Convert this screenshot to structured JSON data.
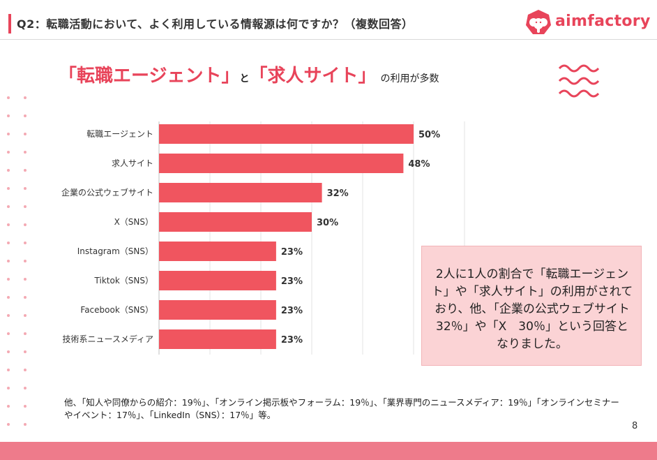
{
  "header": {
    "title": "Q2：転職活動において、よく利用している情報源は何ですか？（複数回答）",
    "logo_text": "aimfactory"
  },
  "headline": {
    "part1": "「転職エージェント」",
    "part2": "と",
    "part3": "「求人サイト」",
    "part4": "の利用が多数"
  },
  "colors": {
    "accent": "#e8445a",
    "bar": "#f0555f",
    "callout_bg": "#fbd3d5",
    "bottom_band": "#ee7b8b"
  },
  "chart_data": {
    "type": "bar",
    "orientation": "horizontal",
    "categories": [
      "転職エージェント",
      "求人サイト",
      "企業の公式ウェブサイト",
      "X（SNS）",
      "Instagram（SNS）",
      "Tiktok（SNS）",
      "Facebook（SNS）",
      "技術系ニュースメディア"
    ],
    "values": [
      50,
      48,
      32,
      30,
      23,
      23,
      23,
      23
    ],
    "data_labels": [
      "50%",
      "48%",
      "32%",
      "30%",
      "23%",
      "23%",
      "23%",
      "23%"
    ],
    "xlim": [
      0,
      60
    ],
    "grid": true,
    "legend": "none"
  },
  "callout": {
    "text": "2人に1人の割合で「転職エージェント」や「求人サイト」の利用がされており、他、「企業の公式ウェブサイト　32％」や「X　30％」という回答となりました。"
  },
  "footnote": "他、「知人や同僚からの紹介：19％」、「オンライン掲示板やフォーラム：19％」、「業界専門のニュースメディア：19％」「オンラインセミナーやイベント：17％」、「LinkedIn（SNS）：17％」等。",
  "page_number": "8"
}
